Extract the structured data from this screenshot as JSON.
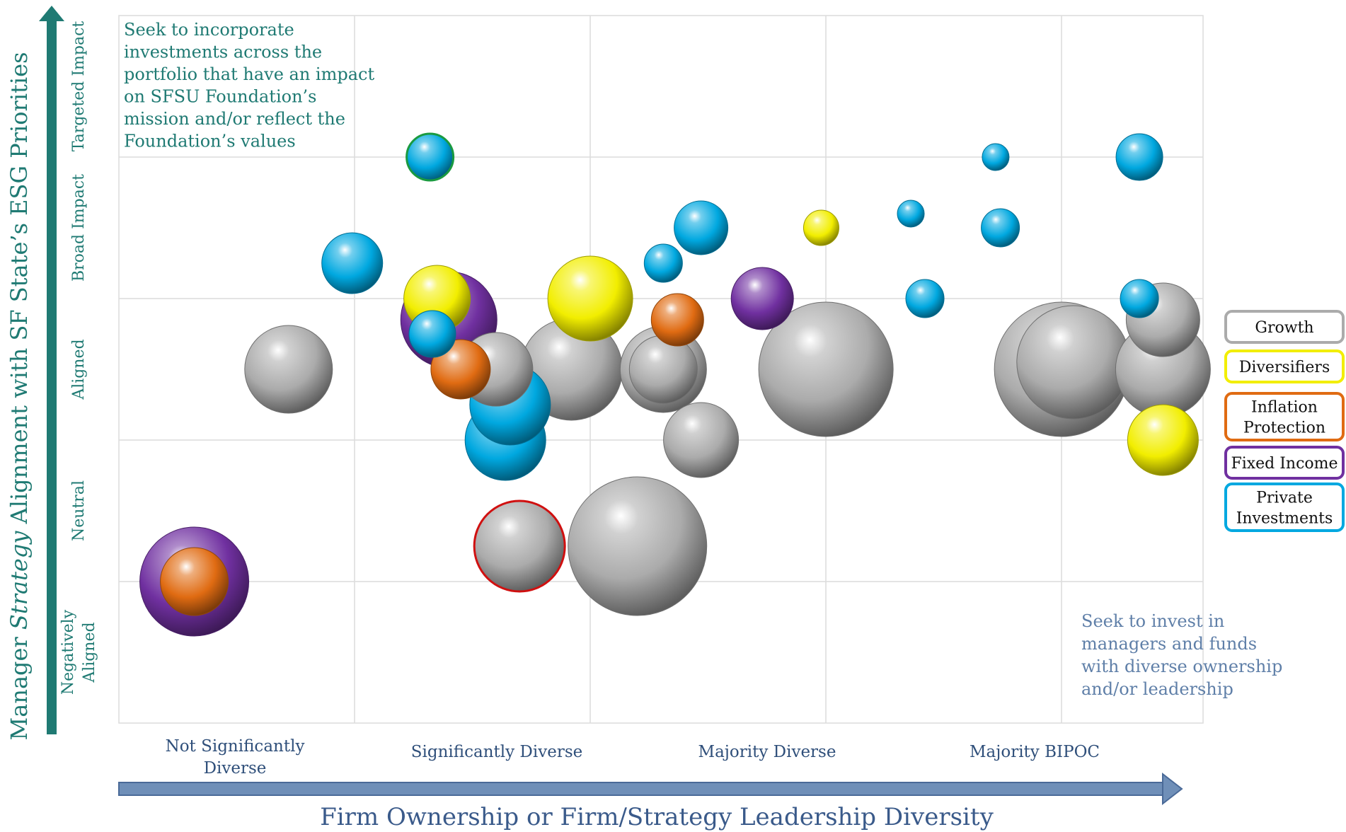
{
  "colors": {
    "growth": "#ababab",
    "diversifiers": "#f2ee00",
    "inflation": "#e06b12",
    "fixed_income": "#7030a0",
    "private": "#00a8e0",
    "axis_y": "#1f7a73",
    "axis_x": "#6f8fb8",
    "grid": "#dcdcdc"
  },
  "notes": {
    "top_left": [
      "Seek to incorporate",
      "investments across the",
      "portfolio that have an impact",
      "on SFSU Foundation’s",
      "mission and/or reflect the",
      "Foundation’s values"
    ],
    "bottom_right": [
      "Seek to invest in",
      "managers and funds",
      "with diverse ownership",
      "and/or leadership"
    ]
  },
  "chart_data": {
    "type": "bubble",
    "title": "",
    "xlabel": "Firm Ownership or Firm/Strategy Leadership Diversity",
    "ylabel_parts": [
      "Manager ",
      "Strategy",
      " Alignment with SF State’s ESG Priorities"
    ],
    "x_categories": [
      [
        "Not Significantly",
        "Diverse"
      ],
      [
        "Significantly Diverse"
      ],
      [
        "Majority Diverse"
      ],
      [
        "Majority BIPOC"
      ]
    ],
    "y_categories": [
      [
        "Negatively",
        "Aligned"
      ],
      [
        "Neutral"
      ],
      [
        "Aligned"
      ],
      [
        "Broad Impact"
      ],
      [
        "Targeted Impact"
      ]
    ],
    "xlim": [
      0,
      4.6
    ],
    "ylim": [
      0,
      5
    ],
    "grid": true,
    "legend_position": "right",
    "legend": [
      {
        "label": [
          "Growth"
        ],
        "key": "growth"
      },
      {
        "label": [
          "Diversifiers"
        ],
        "key": "diversifiers"
      },
      {
        "label": [
          "Inflation",
          "Protection"
        ],
        "key": "inflation"
      },
      {
        "label": [
          "Fixed Income"
        ],
        "key": "fixed_income"
      },
      {
        "label": [
          "Private",
          "Investments"
        ],
        "key": "private"
      }
    ],
    "series": [
      {
        "name": "Growth",
        "key": "growth",
        "points": [
          {
            "x": 0.72,
            "y": 2.5,
            "size": 62
          },
          {
            "x": 1.92,
            "y": 2.5,
            "size": 72
          },
          {
            "x": 1.6,
            "y": 2.5,
            "size": 52
          },
          {
            "x": 2.31,
            "y": 2.5,
            "size": 61
          },
          {
            "x": 2.31,
            "y": 2.5,
            "size": 48
          },
          {
            "x": 2.47,
            "y": 2.0,
            "size": 53
          },
          {
            "x": 3.0,
            "y": 2.5,
            "size": 95
          },
          {
            "x": 4.0,
            "y": 2.5,
            "size": 95
          },
          {
            "x": 4.05,
            "y": 2.55,
            "size": 80
          },
          {
            "x": 4.43,
            "y": 2.5,
            "size": 67
          },
          {
            "x": 4.43,
            "y": 2.85,
            "size": 52
          },
          {
            "x": 2.2,
            "y": 1.25,
            "size": 98
          },
          {
            "x": 1.7,
            "y": 1.25,
            "size": 64,
            "highlight": "#d01010"
          }
        ]
      },
      {
        "name": "Diversifiers",
        "key": "diversifiers",
        "points": [
          {
            "x": 1.35,
            "y": 3.0,
            "size": 47
          },
          {
            "x": 2.0,
            "y": 3.0,
            "size": 60
          },
          {
            "x": 2.98,
            "y": 3.5,
            "size": 25
          },
          {
            "x": 4.43,
            "y": 2.0,
            "size": 50
          }
        ]
      },
      {
        "name": "Inflation Protection",
        "key": "inflation",
        "points": [
          {
            "x": 0.32,
            "y": 1.0,
            "size": 48
          },
          {
            "x": 1.45,
            "y": 2.5,
            "size": 42
          },
          {
            "x": 2.37,
            "y": 2.85,
            "size": 37
          }
        ]
      },
      {
        "name": "Fixed Income",
        "key": "fixed_income",
        "points": [
          {
            "x": 0.32,
            "y": 1.0,
            "size": 77
          },
          {
            "x": 1.4,
            "y": 2.85,
            "size": 68
          },
          {
            "x": 2.73,
            "y": 3.0,
            "size": 44
          }
        ]
      },
      {
        "name": "Private Investments",
        "key": "private",
        "points": [
          {
            "x": 1.32,
            "y": 4.0,
            "size": 33,
            "highlight": "#1a9a40"
          },
          {
            "x": 3.72,
            "y": 4.0,
            "size": 19
          },
          {
            "x": 4.33,
            "y": 4.0,
            "size": 33
          },
          {
            "x": 0.99,
            "y": 3.25,
            "size": 43
          },
          {
            "x": 1.33,
            "y": 2.75,
            "size": 33
          },
          {
            "x": 2.47,
            "y": 3.5,
            "size": 38
          },
          {
            "x": 2.31,
            "y": 3.25,
            "size": 27
          },
          {
            "x": 3.36,
            "y": 3.6,
            "size": 19
          },
          {
            "x": 3.74,
            "y": 3.5,
            "size": 27
          },
          {
            "x": 3.42,
            "y": 3.0,
            "size": 27
          },
          {
            "x": 4.33,
            "y": 3.0,
            "size": 27
          },
          {
            "x": 1.64,
            "y": 2.0,
            "size": 57
          },
          {
            "x": 1.66,
            "y": 2.25,
            "size": 57
          }
        ]
      }
    ]
  }
}
